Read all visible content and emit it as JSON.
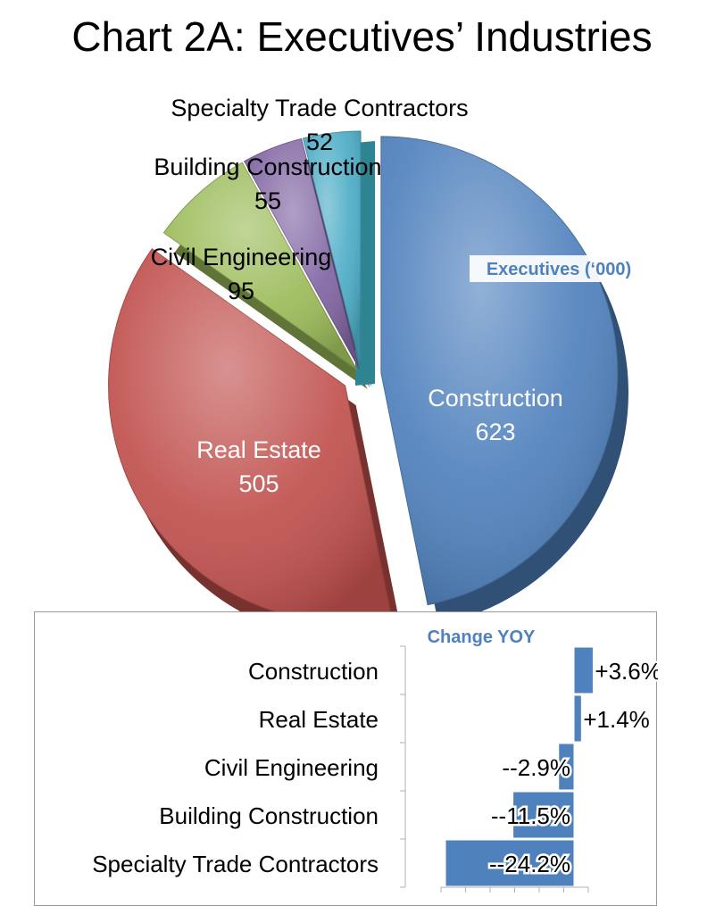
{
  "title": "Chart 2A: Executives’ Industries",
  "chart_data": [
    {
      "type": "pie",
      "series_label": "Executives (‘000)",
      "categories": [
        "Construction",
        "Real Estate",
        "Civil Engineering",
        "Building Construction",
        "Specialty Trade Contractors"
      ],
      "values": [
        623,
        505,
        95,
        55,
        52
      ],
      "colors": [
        "#4f81bd",
        "#c0504d",
        "#9bbb59",
        "#8064a2",
        "#4bacc6"
      ],
      "extra_slice_color": "#2f8491"
    },
    {
      "type": "bar",
      "orientation": "horizontal",
      "title": "Change YOY",
      "categories": [
        "Construction",
        "Real Estate",
        "Civil Engineering",
        "Building Construction",
        "Specialty Trade Contractors"
      ],
      "values": [
        3.6,
        1.4,
        -2.9,
        -11.5,
        -24.2
      ],
      "labels": [
        "+3.6%",
        "+1.4%",
        "--2.9%",
        "--11.5%",
        "--24.2%"
      ],
      "bar_color": "#4f81bd",
      "title_color": "#4f81bd"
    }
  ]
}
